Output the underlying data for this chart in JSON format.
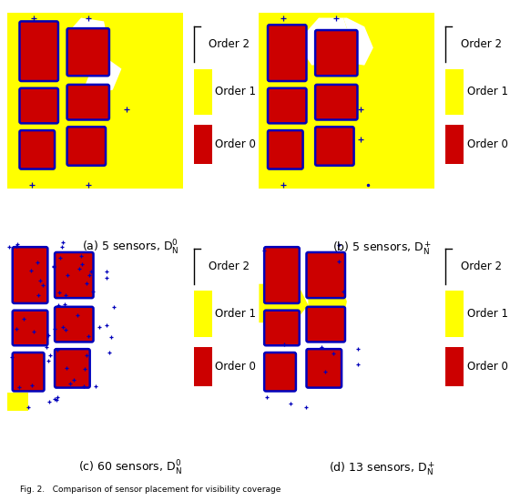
{
  "subplot_labels": [
    "(a) 5 sensors, $\\mathregular{D_N^0}$",
    "(b) 5 sensors, $\\mathregular{D_N^+}$",
    "(c) 60 sensors, $\\mathregular{D_N^0}$",
    "(d) 13 sensors, $\\mathregular{D_N^+}$"
  ],
  "caption": "Fig. 2.   Comparison of sensor placement for visibility coverage",
  "colors": {
    "yellow": "#ffff00",
    "red": "#cc0000",
    "blue": "#0000bb",
    "white": "#ffffff",
    "bg": "#ffffff"
  },
  "figsize": [
    5.6,
    5.5
  ],
  "dpi": 100,
  "legend": {
    "order2_label": "Order 2",
    "order1_label": "Order 1",
    "order0_label": "Order 0"
  }
}
